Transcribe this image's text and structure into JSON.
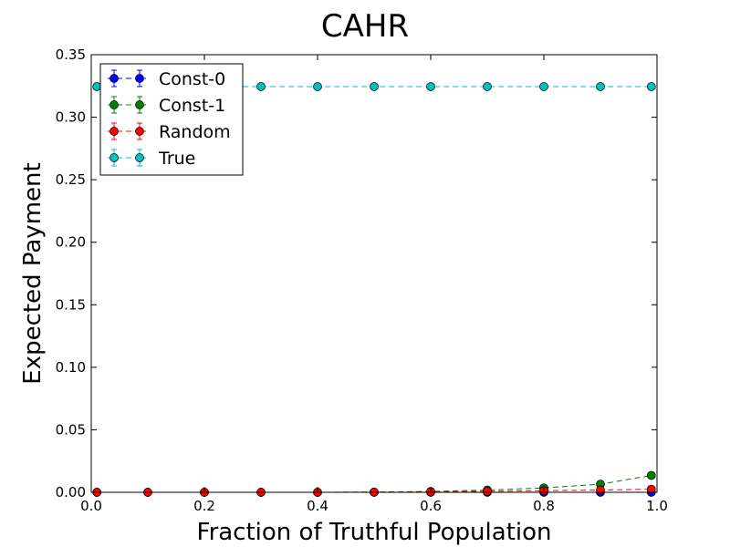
{
  "chart_data": {
    "type": "line",
    "title": "CAHR",
    "xlabel": "Fraction of Truthful Population",
    "ylabel": "Expected Payment",
    "xlim": [
      0.0,
      1.0
    ],
    "ylim": [
      0.0,
      0.35
    ],
    "xticks": [
      "0.0",
      "0.2",
      "0.4",
      "0.6",
      "0.8",
      "1.0"
    ],
    "yticks": [
      "0.00",
      "0.05",
      "0.10",
      "0.15",
      "0.20",
      "0.25",
      "0.30",
      "0.35"
    ],
    "grid": false,
    "legend_position": "top-left",
    "x": [
      0.01,
      0.1,
      0.2,
      0.3,
      0.4,
      0.5,
      0.6,
      0.7,
      0.8,
      0.9,
      0.99
    ],
    "series": [
      {
        "name": "Const-0",
        "color": "#0000ff",
        "values": [
          0.0,
          0.0,
          0.0,
          0.0,
          0.0,
          0.0,
          0.0,
          0.0,
          0.0,
          0.0,
          0.0
        ]
      },
      {
        "name": "Const-1",
        "color": "#008000",
        "values": [
          0.0,
          0.0,
          0.0,
          0.0,
          0.0,
          0.0002,
          0.0007,
          0.0018,
          0.0035,
          0.0065,
          0.0135
        ]
      },
      {
        "name": "Random",
        "color": "#ff0000",
        "values": [
          0.0,
          0.0,
          0.0,
          0.0,
          0.0,
          0.0001,
          0.0004,
          0.0008,
          0.0013,
          0.0018,
          0.0025
        ]
      },
      {
        "name": "True",
        "color": "#00bfbf",
        "values": [
          0.3245,
          0.3245,
          0.3245,
          0.3245,
          0.3245,
          0.3245,
          0.3245,
          0.3245,
          0.3245,
          0.3245,
          0.3245
        ]
      }
    ]
  }
}
